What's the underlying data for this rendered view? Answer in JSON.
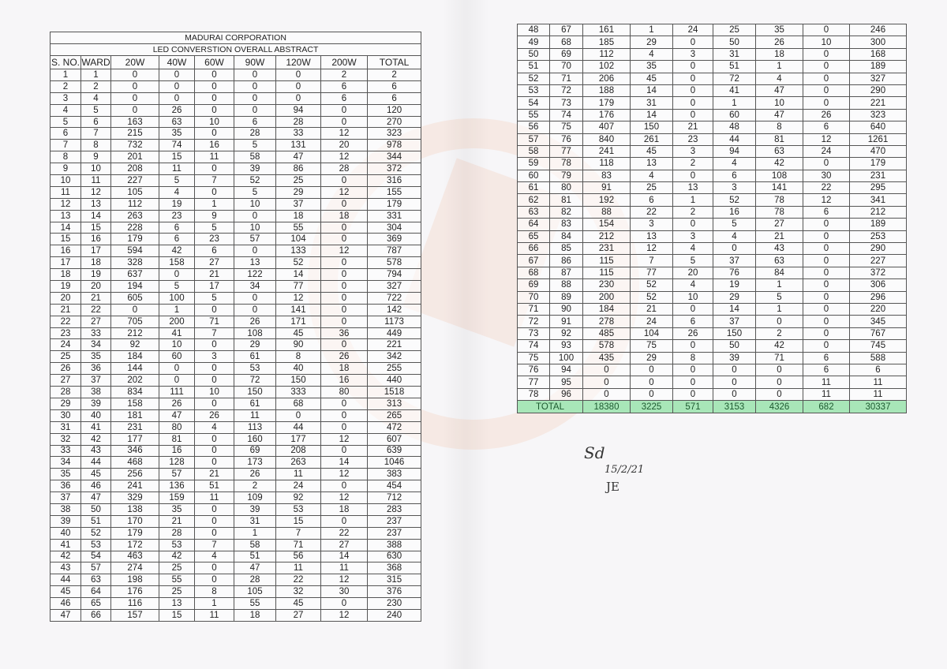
{
  "title": "MADURAI CORPORATION",
  "subtitle": "LED CONVERSTION OVERALL ABSTRACT",
  "columns": [
    "S. NO.",
    "WARD",
    "20W",
    "40W",
    "60W",
    "90W",
    "120W",
    "200W",
    "TOTAL"
  ],
  "rows": [
    [
      1,
      1,
      0,
      0,
      0,
      0,
      0,
      2,
      2
    ],
    [
      2,
      2,
      0,
      0,
      0,
      0,
      0,
      6,
      6
    ],
    [
      3,
      4,
      0,
      0,
      0,
      0,
      0,
      6,
      6
    ],
    [
      4,
      5,
      0,
      26,
      0,
      0,
      94,
      0,
      120
    ],
    [
      5,
      6,
      163,
      63,
      10,
      6,
      28,
      0,
      270
    ],
    [
      6,
      7,
      215,
      35,
      0,
      28,
      33,
      12,
      323
    ],
    [
      7,
      8,
      732,
      74,
      16,
      5,
      131,
      20,
      978
    ],
    [
      8,
      9,
      201,
      15,
      11,
      58,
      47,
      12,
      344
    ],
    [
      9,
      10,
      208,
      11,
      0,
      39,
      86,
      28,
      372
    ],
    [
      10,
      11,
      227,
      5,
      7,
      52,
      25,
      0,
      316
    ],
    [
      11,
      12,
      105,
      4,
      0,
      5,
      29,
      12,
      155
    ],
    [
      12,
      13,
      112,
      19,
      1,
      10,
      37,
      0,
      179
    ],
    [
      13,
      14,
      263,
      23,
      9,
      0,
      18,
      18,
      331
    ],
    [
      14,
      15,
      228,
      6,
      5,
      10,
      55,
      0,
      304
    ],
    [
      15,
      16,
      179,
      6,
      23,
      57,
      104,
      0,
      369
    ],
    [
      16,
      17,
      594,
      42,
      6,
      0,
      133,
      12,
      787
    ],
    [
      17,
      18,
      328,
      158,
      27,
      13,
      52,
      0,
      578
    ],
    [
      18,
      19,
      637,
      0,
      21,
      122,
      14,
      0,
      794
    ],
    [
      19,
      20,
      194,
      5,
      17,
      34,
      77,
      0,
      327
    ],
    [
      20,
      21,
      605,
      100,
      5,
      0,
      12,
      0,
      722
    ],
    [
      21,
      22,
      0,
      1,
      0,
      0,
      141,
      0,
      142
    ],
    [
      22,
      27,
      705,
      200,
      71,
      26,
      171,
      0,
      1173
    ],
    [
      23,
      33,
      212,
      41,
      7,
      108,
      45,
      36,
      449
    ],
    [
      24,
      34,
      92,
      10,
      0,
      29,
      90,
      0,
      221
    ],
    [
      25,
      35,
      184,
      60,
      3,
      61,
      8,
      26,
      342
    ],
    [
      26,
      36,
      144,
      0,
      0,
      53,
      40,
      18,
      255
    ],
    [
      27,
      37,
      202,
      0,
      0,
      72,
      150,
      16,
      440
    ],
    [
      28,
      38,
      834,
      111,
      10,
      150,
      333,
      80,
      1518
    ],
    [
      29,
      39,
      158,
      26,
      0,
      61,
      68,
      0,
      313
    ],
    [
      30,
      40,
      181,
      47,
      26,
      11,
      0,
      0,
      265
    ],
    [
      31,
      41,
      231,
      80,
      4,
      113,
      44,
      0,
      472
    ],
    [
      32,
      42,
      177,
      81,
      0,
      160,
      177,
      12,
      607
    ],
    [
      33,
      43,
      346,
      16,
      0,
      69,
      208,
      0,
      639
    ],
    [
      34,
      44,
      468,
      128,
      0,
      173,
      263,
      14,
      1046
    ],
    [
      35,
      45,
      256,
      57,
      21,
      26,
      11,
      12,
      383
    ],
    [
      36,
      46,
      241,
      136,
      51,
      2,
      24,
      0,
      454
    ],
    [
      37,
      47,
      329,
      159,
      11,
      109,
      92,
      12,
      712
    ],
    [
      38,
      50,
      138,
      35,
      0,
      39,
      53,
      18,
      283
    ],
    [
      39,
      51,
      170,
      21,
      0,
      31,
      15,
      0,
      237
    ],
    [
      40,
      52,
      179,
      28,
      0,
      1,
      7,
      22,
      237
    ],
    [
      41,
      53,
      172,
      53,
      7,
      58,
      71,
      27,
      388
    ],
    [
      42,
      54,
      463,
      42,
      4,
      51,
      56,
      14,
      630
    ],
    [
      43,
      57,
      274,
      25,
      0,
      47,
      11,
      11,
      368
    ],
    [
      44,
      63,
      198,
      55,
      0,
      28,
      22,
      12,
      315
    ],
    [
      45,
      64,
      176,
      25,
      8,
      105,
      32,
      30,
      376
    ],
    [
      46,
      65,
      116,
      13,
      1,
      55,
      45,
      0,
      230
    ],
    [
      47,
      66,
      157,
      15,
      11,
      18,
      27,
      12,
      240
    ],
    [
      48,
      67,
      161,
      1,
      24,
      25,
      35,
      0,
      246
    ],
    [
      49,
      68,
      185,
      29,
      0,
      50,
      26,
      10,
      300
    ],
    [
      50,
      69,
      112,
      4,
      3,
      31,
      18,
      0,
      168
    ],
    [
      51,
      70,
      102,
      35,
      0,
      51,
      1,
      0,
      189
    ],
    [
      52,
      71,
      206,
      45,
      0,
      72,
      4,
      0,
      327
    ],
    [
      53,
      72,
      188,
      14,
      0,
      41,
      47,
      0,
      290
    ],
    [
      54,
      73,
      179,
      31,
      0,
      1,
      10,
      0,
      221
    ],
    [
      55,
      74,
      176,
      14,
      0,
      60,
      47,
      26,
      323
    ],
    [
      56,
      75,
      407,
      150,
      21,
      48,
      8,
      6,
      640
    ],
    [
      57,
      76,
      840,
      261,
      23,
      44,
      81,
      12,
      1261
    ],
    [
      58,
      77,
      241,
      45,
      3,
      94,
      63,
      24,
      470
    ],
    [
      59,
      78,
      118,
      13,
      2,
      4,
      42,
      0,
      179
    ],
    [
      60,
      79,
      83,
      4,
      0,
      6,
      108,
      30,
      231
    ],
    [
      61,
      80,
      91,
      25,
      13,
      3,
      141,
      22,
      295
    ],
    [
      62,
      81,
      192,
      6,
      1,
      52,
      78,
      12,
      341
    ],
    [
      63,
      82,
      88,
      22,
      2,
      16,
      78,
      6,
      212
    ],
    [
      64,
      83,
      154,
      3,
      0,
      5,
      27,
      0,
      189
    ],
    [
      65,
      84,
      212,
      13,
      3,
      4,
      21,
      0,
      253
    ],
    [
      66,
      85,
      231,
      12,
      4,
      0,
      43,
      0,
      290
    ],
    [
      67,
      86,
      115,
      7,
      5,
      37,
      63,
      0,
      227
    ],
    [
      68,
      87,
      115,
      77,
      20,
      76,
      84,
      0,
      372
    ],
    [
      69,
      88,
      230,
      52,
      4,
      19,
      1,
      0,
      306
    ],
    [
      70,
      89,
      200,
      52,
      10,
      29,
      5,
      0,
      296
    ],
    [
      71,
      90,
      184,
      21,
      0,
      14,
      1,
      0,
      220
    ],
    [
      72,
      91,
      278,
      24,
      6,
      37,
      0,
      0,
      345
    ],
    [
      73,
      92,
      485,
      104,
      26,
      150,
      2,
      0,
      767
    ],
    [
      74,
      93,
      578,
      75,
      0,
      50,
      42,
      0,
      745
    ],
    [
      75,
      100,
      435,
      29,
      8,
      39,
      71,
      6,
      588
    ],
    [
      76,
      94,
      0,
      0,
      0,
      0,
      0,
      6,
      6
    ],
    [
      77,
      95,
      0,
      0,
      0,
      0,
      0,
      11,
      11
    ],
    [
      78,
      96,
      0,
      0,
      0,
      0,
      0,
      11,
      11
    ]
  ],
  "total": {
    "label": "TOTAL",
    "values": [
      18380,
      3225,
      571,
      3153,
      4326,
      682,
      30337
    ]
  },
  "total_color": "#a8e6b8",
  "signature": {
    "initials": "Sd",
    "date": "15/2/21",
    "designation": "JE"
  }
}
